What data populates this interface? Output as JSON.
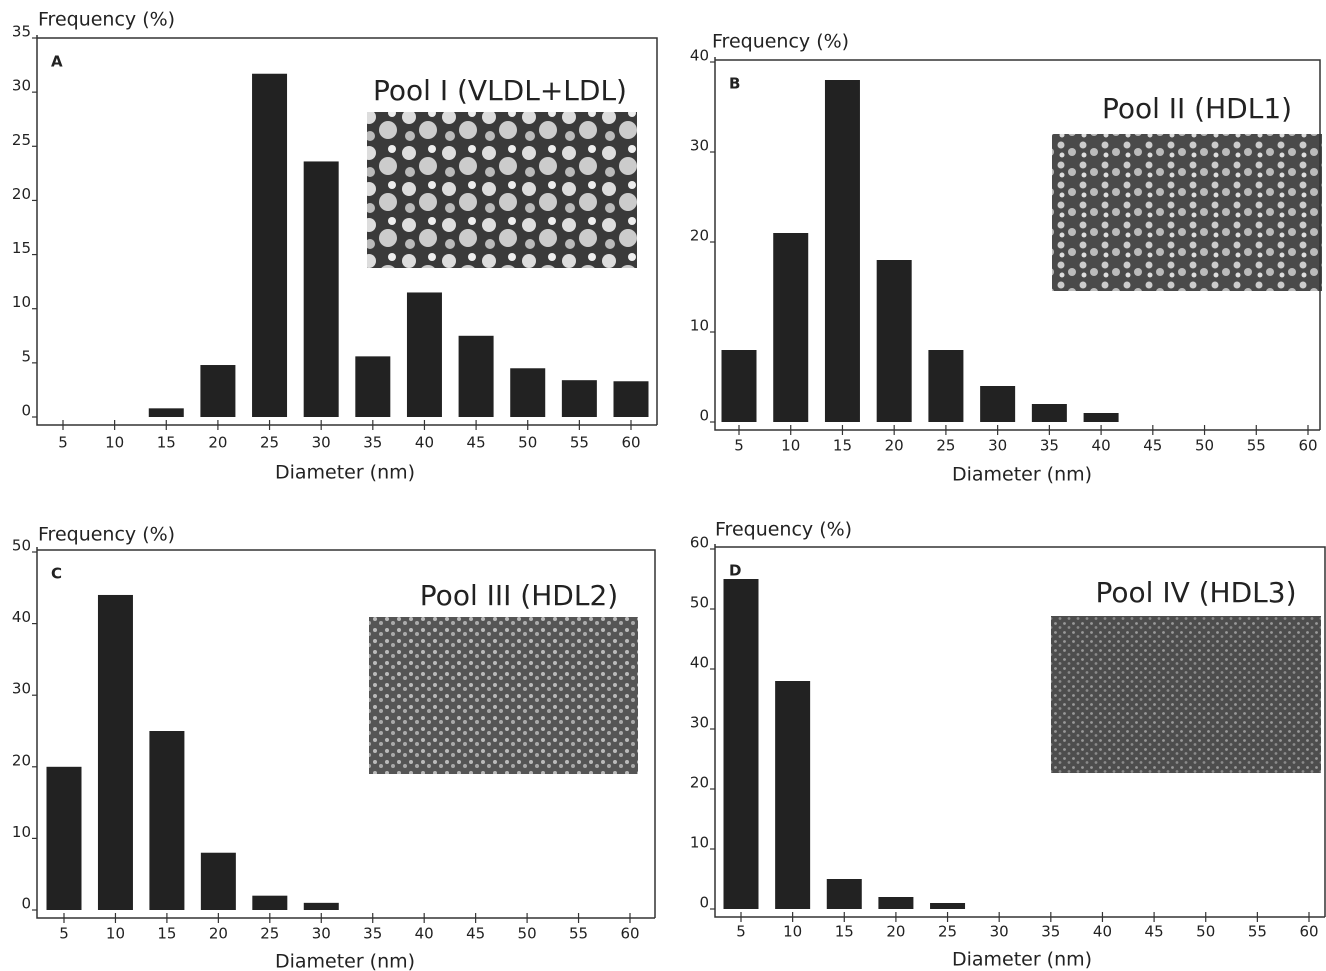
{
  "chart_data": [
    {
      "type": "bar",
      "panel": "A",
      "title": "Pool I (VLDL+LDL)",
      "ylabel": "Frequency (%)",
      "xlabel": "Diameter (nm)",
      "color": "#222222",
      "categories": [
        "5",
        "10",
        "15",
        "20",
        "25",
        "30",
        "35",
        "40",
        "45",
        "50",
        "55",
        "60"
      ],
      "values": [
        0,
        0,
        0.8,
        4.8,
        31.7,
        23.6,
        5.6,
        11.5,
        7.5,
        4.5,
        3.4,
        3.3
      ],
      "ylim": [
        0,
        35
      ],
      "yticks": [
        0,
        5,
        10,
        15,
        20,
        25,
        30,
        35
      ]
    },
    {
      "type": "bar",
      "panel": "B",
      "title": "Pool II (HDL1)",
      "ylabel": "Frequency (%)",
      "xlabel": "Diameter (nm)",
      "color": "#222222",
      "categories": [
        "5",
        "10",
        "15",
        "20",
        "25",
        "30",
        "35",
        "40",
        "45",
        "50",
        "55",
        "60"
      ],
      "values": [
        8,
        21,
        38,
        18,
        8,
        4,
        2,
        1,
        0,
        0,
        0,
        0
      ],
      "ylim": [
        0,
        40
      ],
      "yticks": [
        0,
        10,
        20,
        30,
        40
      ]
    },
    {
      "type": "bar",
      "panel": "C",
      "title": "Pool III (HDL2)",
      "ylabel": "Frequency (%)",
      "xlabel": "Diameter (nm)",
      "color": "#222222",
      "categories": [
        "5",
        "10",
        "15",
        "20",
        "25",
        "30",
        "35",
        "40",
        "45",
        "50",
        "55",
        "60"
      ],
      "values": [
        20,
        44,
        25,
        8,
        2,
        1,
        0,
        0,
        0,
        0,
        0,
        0
      ],
      "ylim": [
        0,
        50
      ],
      "yticks": [
        0,
        10,
        20,
        30,
        40,
        50
      ]
    },
    {
      "type": "bar",
      "panel": "D",
      "title": "Pool IV (HDL3)",
      "ylabel": "Frequency (%)",
      "xlabel": "Diameter (nm)",
      "color": "#222222",
      "categories": [
        "5",
        "10",
        "15",
        "20",
        "25",
        "30",
        "35",
        "40",
        "45",
        "50",
        "55",
        "60"
      ],
      "values": [
        55,
        38,
        5,
        2,
        1,
        0,
        0,
        0,
        0,
        0,
        0,
        0
      ],
      "ylim": [
        0,
        60
      ],
      "yticks": [
        0,
        10,
        20,
        30,
        40,
        50,
        60
      ]
    }
  ]
}
